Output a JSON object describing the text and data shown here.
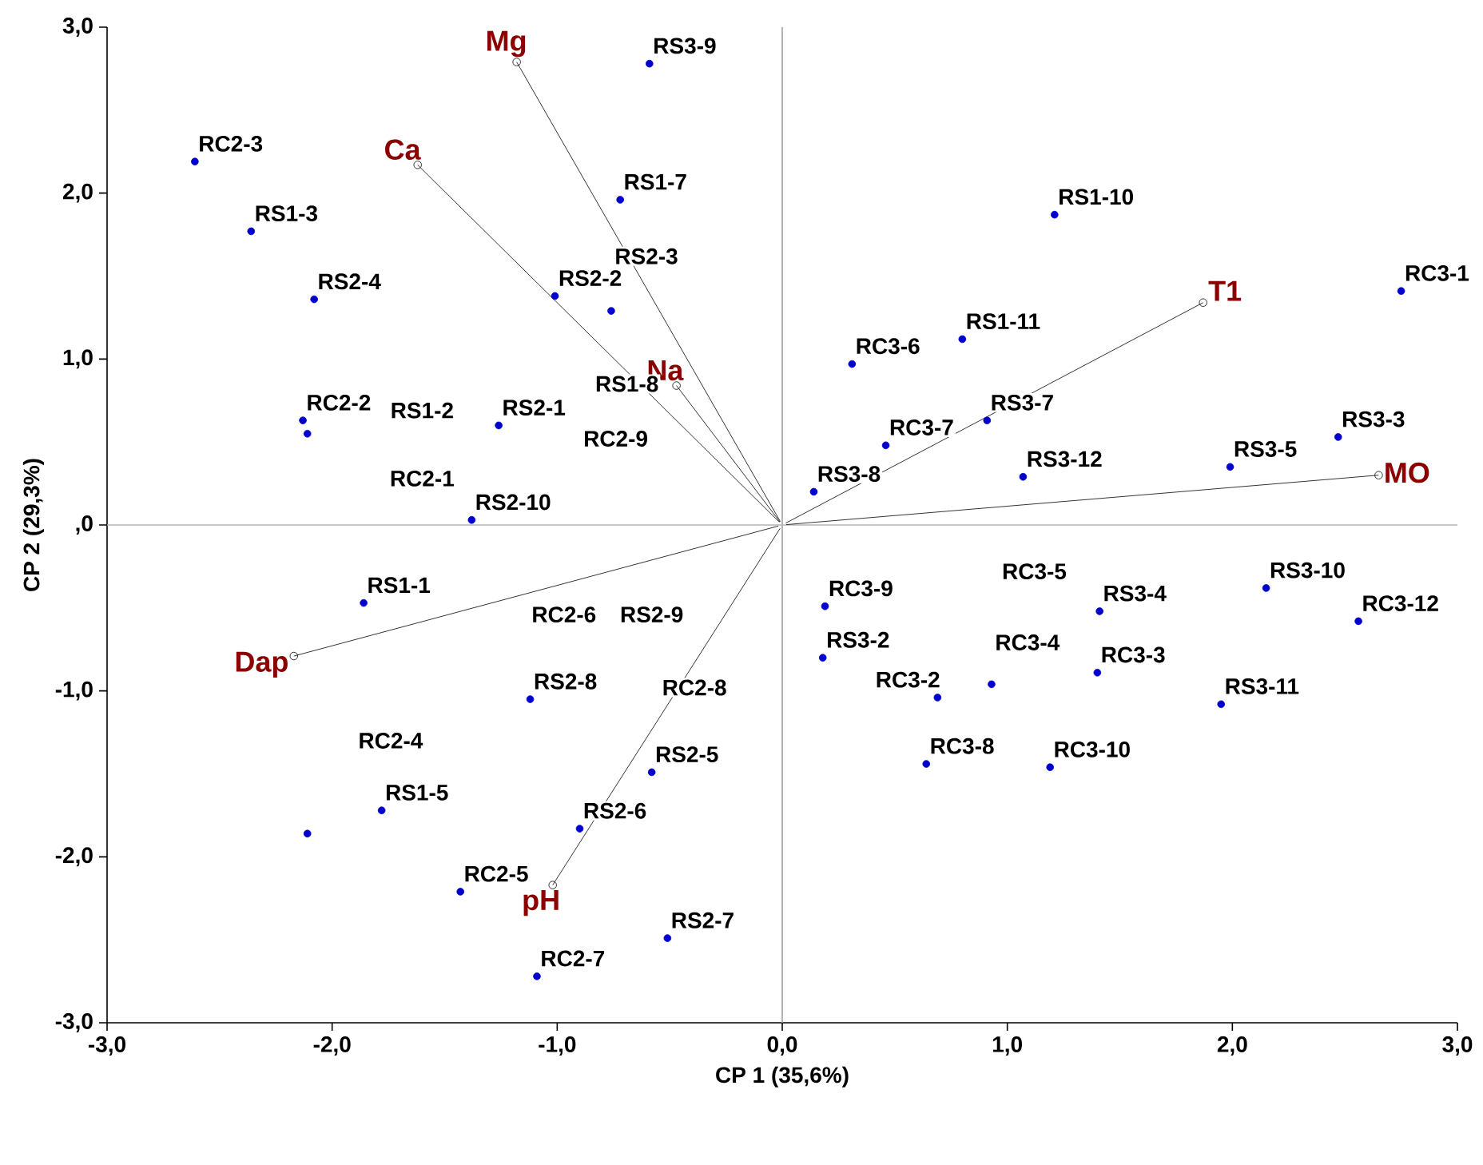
{
  "chart_data": {
    "type": "scatter",
    "xlabel": "CP 1 (35,6%)",
    "ylabel": "CP 2 (29,3%)",
    "xlim": [
      -3,
      3
    ],
    "ylim": [
      -3,
      3
    ],
    "xticks": [
      {
        "value": -3,
        "label": "-3,0"
      },
      {
        "value": -2,
        "label": "-2,0"
      },
      {
        "value": -1,
        "label": "-1,0"
      },
      {
        "value": 0,
        "label": "0,0"
      },
      {
        "value": 1,
        "label": "1,0"
      },
      {
        "value": 2,
        "label": "2,0"
      },
      {
        "value": 3,
        "label": "3,0"
      }
    ],
    "yticks": [
      {
        "value": -3,
        "label": "-3,0"
      },
      {
        "value": -2,
        "label": "-2,0"
      },
      {
        "value": -1,
        "label": "-1,0"
      },
      {
        "value": 0,
        "label": ",0"
      },
      {
        "value": 1,
        "label": "1,0"
      },
      {
        "value": 2,
        "label": "2,0"
      },
      {
        "value": 3,
        "label": "3,0"
      }
    ],
    "marker": "circle",
    "ref_lines": [
      {
        "axis": "x",
        "value": 0,
        "color": "#a0a0a0"
      },
      {
        "axis": "y",
        "value": 0,
        "color": "#b4b4b4"
      }
    ],
    "series": [
      {
        "color": "#0000cc",
        "x": [
          -2.61,
          -2.36,
          -2.08,
          -2.13,
          -2.11,
          -1.26,
          -1.38,
          -1.01,
          -0.76,
          -0.72,
          -0.59,
          1.21,
          2.75,
          0.8,
          0.31,
          0.91,
          0.46,
          0.14,
          1.07,
          1.99,
          2.47,
          -1.86,
          -1.12,
          -0.58,
          -1.78,
          -2.11,
          -0.9,
          -1.43,
          -0.51,
          -1.09,
          0.19,
          0.18,
          0.69,
          0.93,
          1.41,
          1.4,
          2.15,
          2.56,
          1.95,
          0.64,
          1.19
        ],
        "values": [
          2.19,
          1.77,
          1.36,
          0.63,
          0.55,
          0.6,
          0.03,
          1.38,
          1.29,
          1.96,
          2.78,
          1.87,
          1.41,
          1.12,
          0.97,
          0.63,
          0.48,
          0.2,
          0.29,
          0.35,
          0.53,
          -0.47,
          -1.05,
          -1.49,
          -1.72,
          -1.86,
          -1.83,
          -2.21,
          -2.49,
          -2.72,
          -0.49,
          -0.8,
          -1.04,
          -0.96,
          -0.52,
          -0.89,
          -0.38,
          -0.58,
          -1.08,
          -1.44,
          -1.46
        ],
        "value_labels": [
          "RC2-3",
          "RS1-3",
          "RS2-4",
          "RC2-2",
          null,
          "RS2-1",
          "RS2-10",
          "RS2-2",
          "RS2-3",
          "RS1-7",
          "RS3-9",
          "RS1-10",
          "RC3-1",
          "RS1-11",
          "RC3-6",
          "RS3-7",
          "RC3-7",
          "RS3-8",
          "RS3-12",
          "RS3-5",
          "RS3-3",
          "RS1-1",
          "RS2-8",
          "RS2-5",
          "RS1-5",
          null,
          "RS2-6",
          "RC2-5",
          "RS2-7",
          "RC2-7",
          "RC3-9",
          "RS3-2",
          "RC3-2",
          "RC3-4",
          "RS3-4",
          "RC3-3",
          "RS3-10",
          "RC3-12",
          "RS3-11",
          "RC3-8",
          "RC3-10"
        ]
      },
      {
        "type": "line",
        "name": "Mg",
        "color": "#000000",
        "x": [
          0,
          -1.18
        ],
        "values": [
          0,
          2.79
        ]
      },
      {
        "type": "line",
        "name": "Ca",
        "color": "#000000",
        "x": [
          0,
          -1.62
        ],
        "values": [
          0,
          2.17
        ]
      },
      {
        "type": "line",
        "name": "Na",
        "color": "#000000",
        "x": [
          0,
          -0.47
        ],
        "values": [
          0,
          0.84
        ]
      },
      {
        "type": "line",
        "name": "T1",
        "color": "#000000",
        "x": [
          0,
          1.87
        ],
        "values": [
          0,
          1.34
        ]
      },
      {
        "type": "line",
        "name": "MO",
        "color": "#000000",
        "x": [
          0,
          2.65
        ],
        "values": [
          0,
          0.3
        ]
      },
      {
        "type": "line",
        "name": "Dap",
        "color": "#000000",
        "x": [
          0,
          -2.17
        ],
        "values": [
          0,
          -0.79
        ]
      },
      {
        "type": "line",
        "name": "pH",
        "color": "#000000",
        "x": [
          0,
          -1.02
        ],
        "values": [
          0,
          -2.17
        ]
      }
    ],
    "annotations": [
      "RS1-2",
      "RC2-1",
      "RS1-8",
      "RC2-9",
      "RC2-6",
      "RS2-9",
      "RC2-8",
      "RC2-4",
      "RC3-5"
    ]
  }
}
